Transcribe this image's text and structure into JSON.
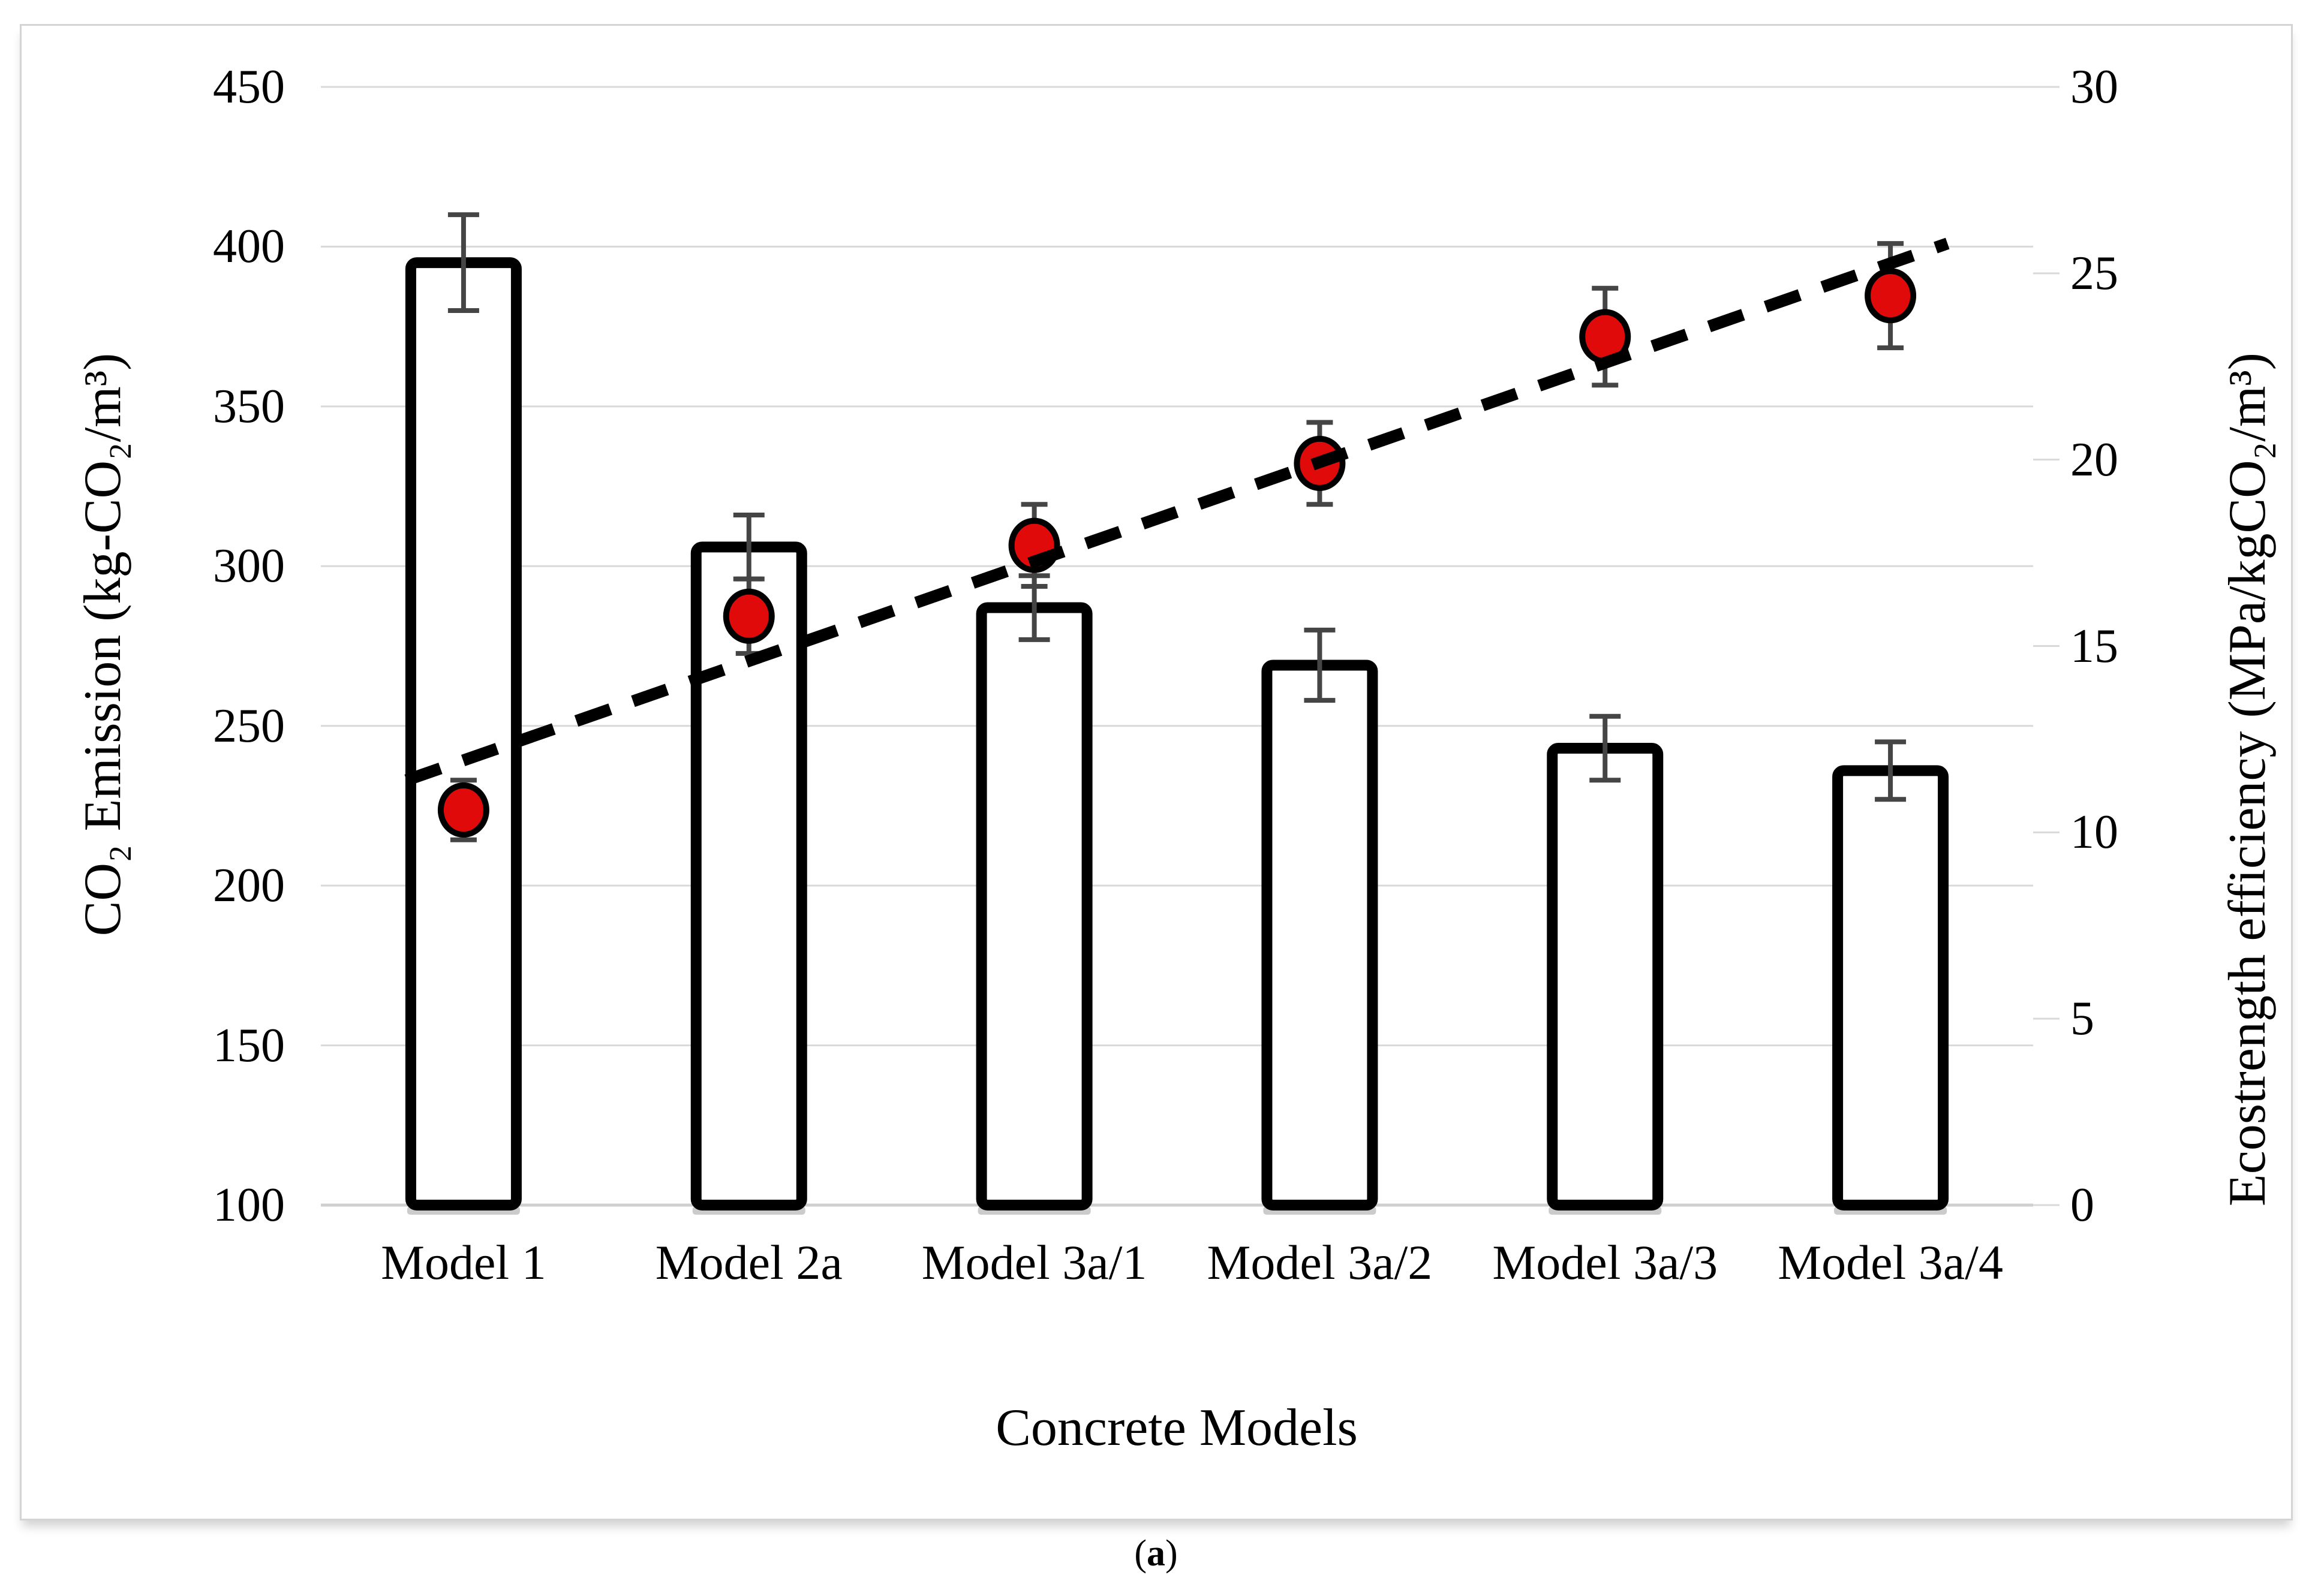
{
  "caption": {
    "open": "(",
    "letter": "a",
    "close": ")"
  },
  "colors": {
    "grid": "#d9d9d9",
    "axis_line": "#cfcfcf",
    "bar_fill": "#ffffff",
    "bar_stroke": "#000000",
    "bar_shadow": "#a0a0a0",
    "error_bar": "#454545",
    "point_fill": "#e00a0a",
    "point_stroke": "#000000",
    "trendline": "#000000",
    "text": "#000000",
    "frame_border": "#d4d4d4"
  },
  "chart_data": {
    "type": "bar",
    "subtype": "combo-bar-scatter-with-trendline",
    "categories": [
      "Model 1",
      "Model 2a",
      "Model 3a/1",
      "Model 3a/2",
      "Model 3a/3",
      "Model 3a/4"
    ],
    "xlabel": "Concrete Models",
    "grid": true,
    "legend": false,
    "left_axis": {
      "label": "CO₂ Emission (kg-CO₂/m³)",
      "min": 100,
      "max": 450,
      "ticks": [
        450,
        400,
        350,
        300,
        250,
        200,
        150,
        100
      ]
    },
    "right_axis": {
      "label": "Ecostrength efficiency (MPa/kgCO₂/m³)",
      "min": 0,
      "max": 30,
      "ticks": [
        30,
        25,
        20,
        15,
        10,
        5,
        0
      ]
    },
    "series": [
      {
        "name": "CO2 emission",
        "type": "bar",
        "axis": "left",
        "values": [
          395,
          306,
          287,
          269,
          243,
          236
        ],
        "errors": [
          15,
          10,
          10,
          11,
          10,
          9
        ]
      },
      {
        "name": "Ecostrength efficiency",
        "type": "scatter",
        "axis": "right",
        "values": [
          10.6,
          15.8,
          17.7,
          19.9,
          23.3,
          24.4
        ],
        "errors": [
          0.8,
          1.0,
          1.1,
          1.1,
          1.3,
          1.4
        ]
      }
    ],
    "trendline": {
      "style": "dashed",
      "axis": "right",
      "start_category": 0.8,
      "end_category": 6.2,
      "start_value": 11.4,
      "end_value": 25.8
    }
  }
}
